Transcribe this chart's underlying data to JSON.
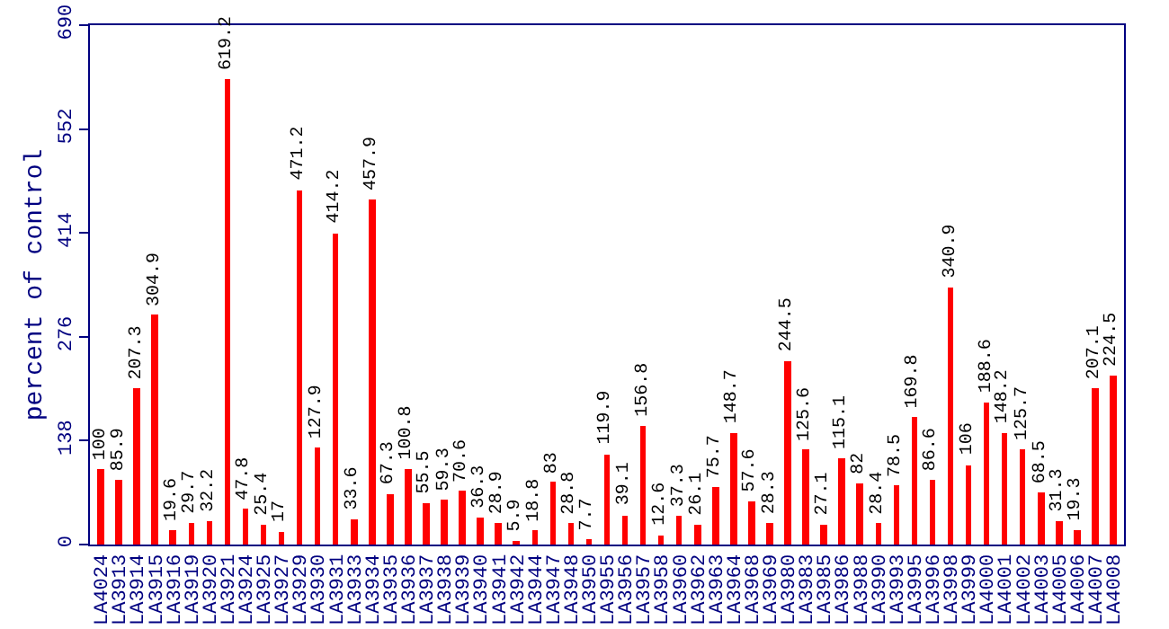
{
  "chart_data": {
    "type": "bar",
    "ylabel": "percent of control",
    "categories": [
      "LA4024",
      "LA3913",
      "LA3914",
      "LA3915",
      "LA3916",
      "LA3919",
      "LA3920",
      "LA3921",
      "LA3924",
      "LA3925",
      "LA3927",
      "LA3929",
      "LA3930",
      "LA3931",
      "LA3933",
      "LA3934",
      "LA3935",
      "LA3936",
      "LA3937",
      "LA3938",
      "LA3939",
      "LA3940",
      "LA3941",
      "LA3942",
      "LA3944",
      "LA3947",
      "LA3948",
      "LA3950",
      "LA3955",
      "LA3956",
      "LA3957",
      "LA3958",
      "LA3960",
      "LA3962",
      "LA3963",
      "LA3964",
      "LA3968",
      "LA3969",
      "LA3980",
      "LA3983",
      "LA3985",
      "LA3986",
      "LA3988",
      "LA3990",
      "LA3993",
      "LA3995",
      "LA3996",
      "LA3998",
      "LA3999",
      "LA4000",
      "LA4001",
      "LA4002",
      "LA4003",
      "LA4005",
      "LA4006",
      "LA4007",
      "LA4008"
    ],
    "values": [
      100,
      85.9,
      207.3,
      304.9,
      19.6,
      29.7,
      32.2,
      619.2,
      47.8,
      25.4,
      17,
      471.2,
      127.9,
      414.2,
      33.6,
      457.9,
      67.3,
      100.8,
      55.5,
      59.3,
      70.6,
      36.3,
      28.9,
      5.9,
      18.8,
      83,
      28.8,
      7.7,
      119.9,
      39.1,
      156.8,
      12.6,
      37.3,
      26.1,
      75.7,
      148.7,
      57.6,
      28.3,
      244.5,
      125.6,
      27.1,
      115.1,
      82,
      28.4,
      78.5,
      169.8,
      86.6,
      340.9,
      106,
      188.6,
      148.2,
      125.7,
      68.5,
      31.3,
      19.3,
      207.1,
      224.5
    ],
    "color": "#ff0000",
    "ylim": [
      0,
      690
    ],
    "yticks": [
      0,
      138,
      276,
      414,
      552,
      690
    ],
    "data_labels": true,
    "grid": false
  }
}
